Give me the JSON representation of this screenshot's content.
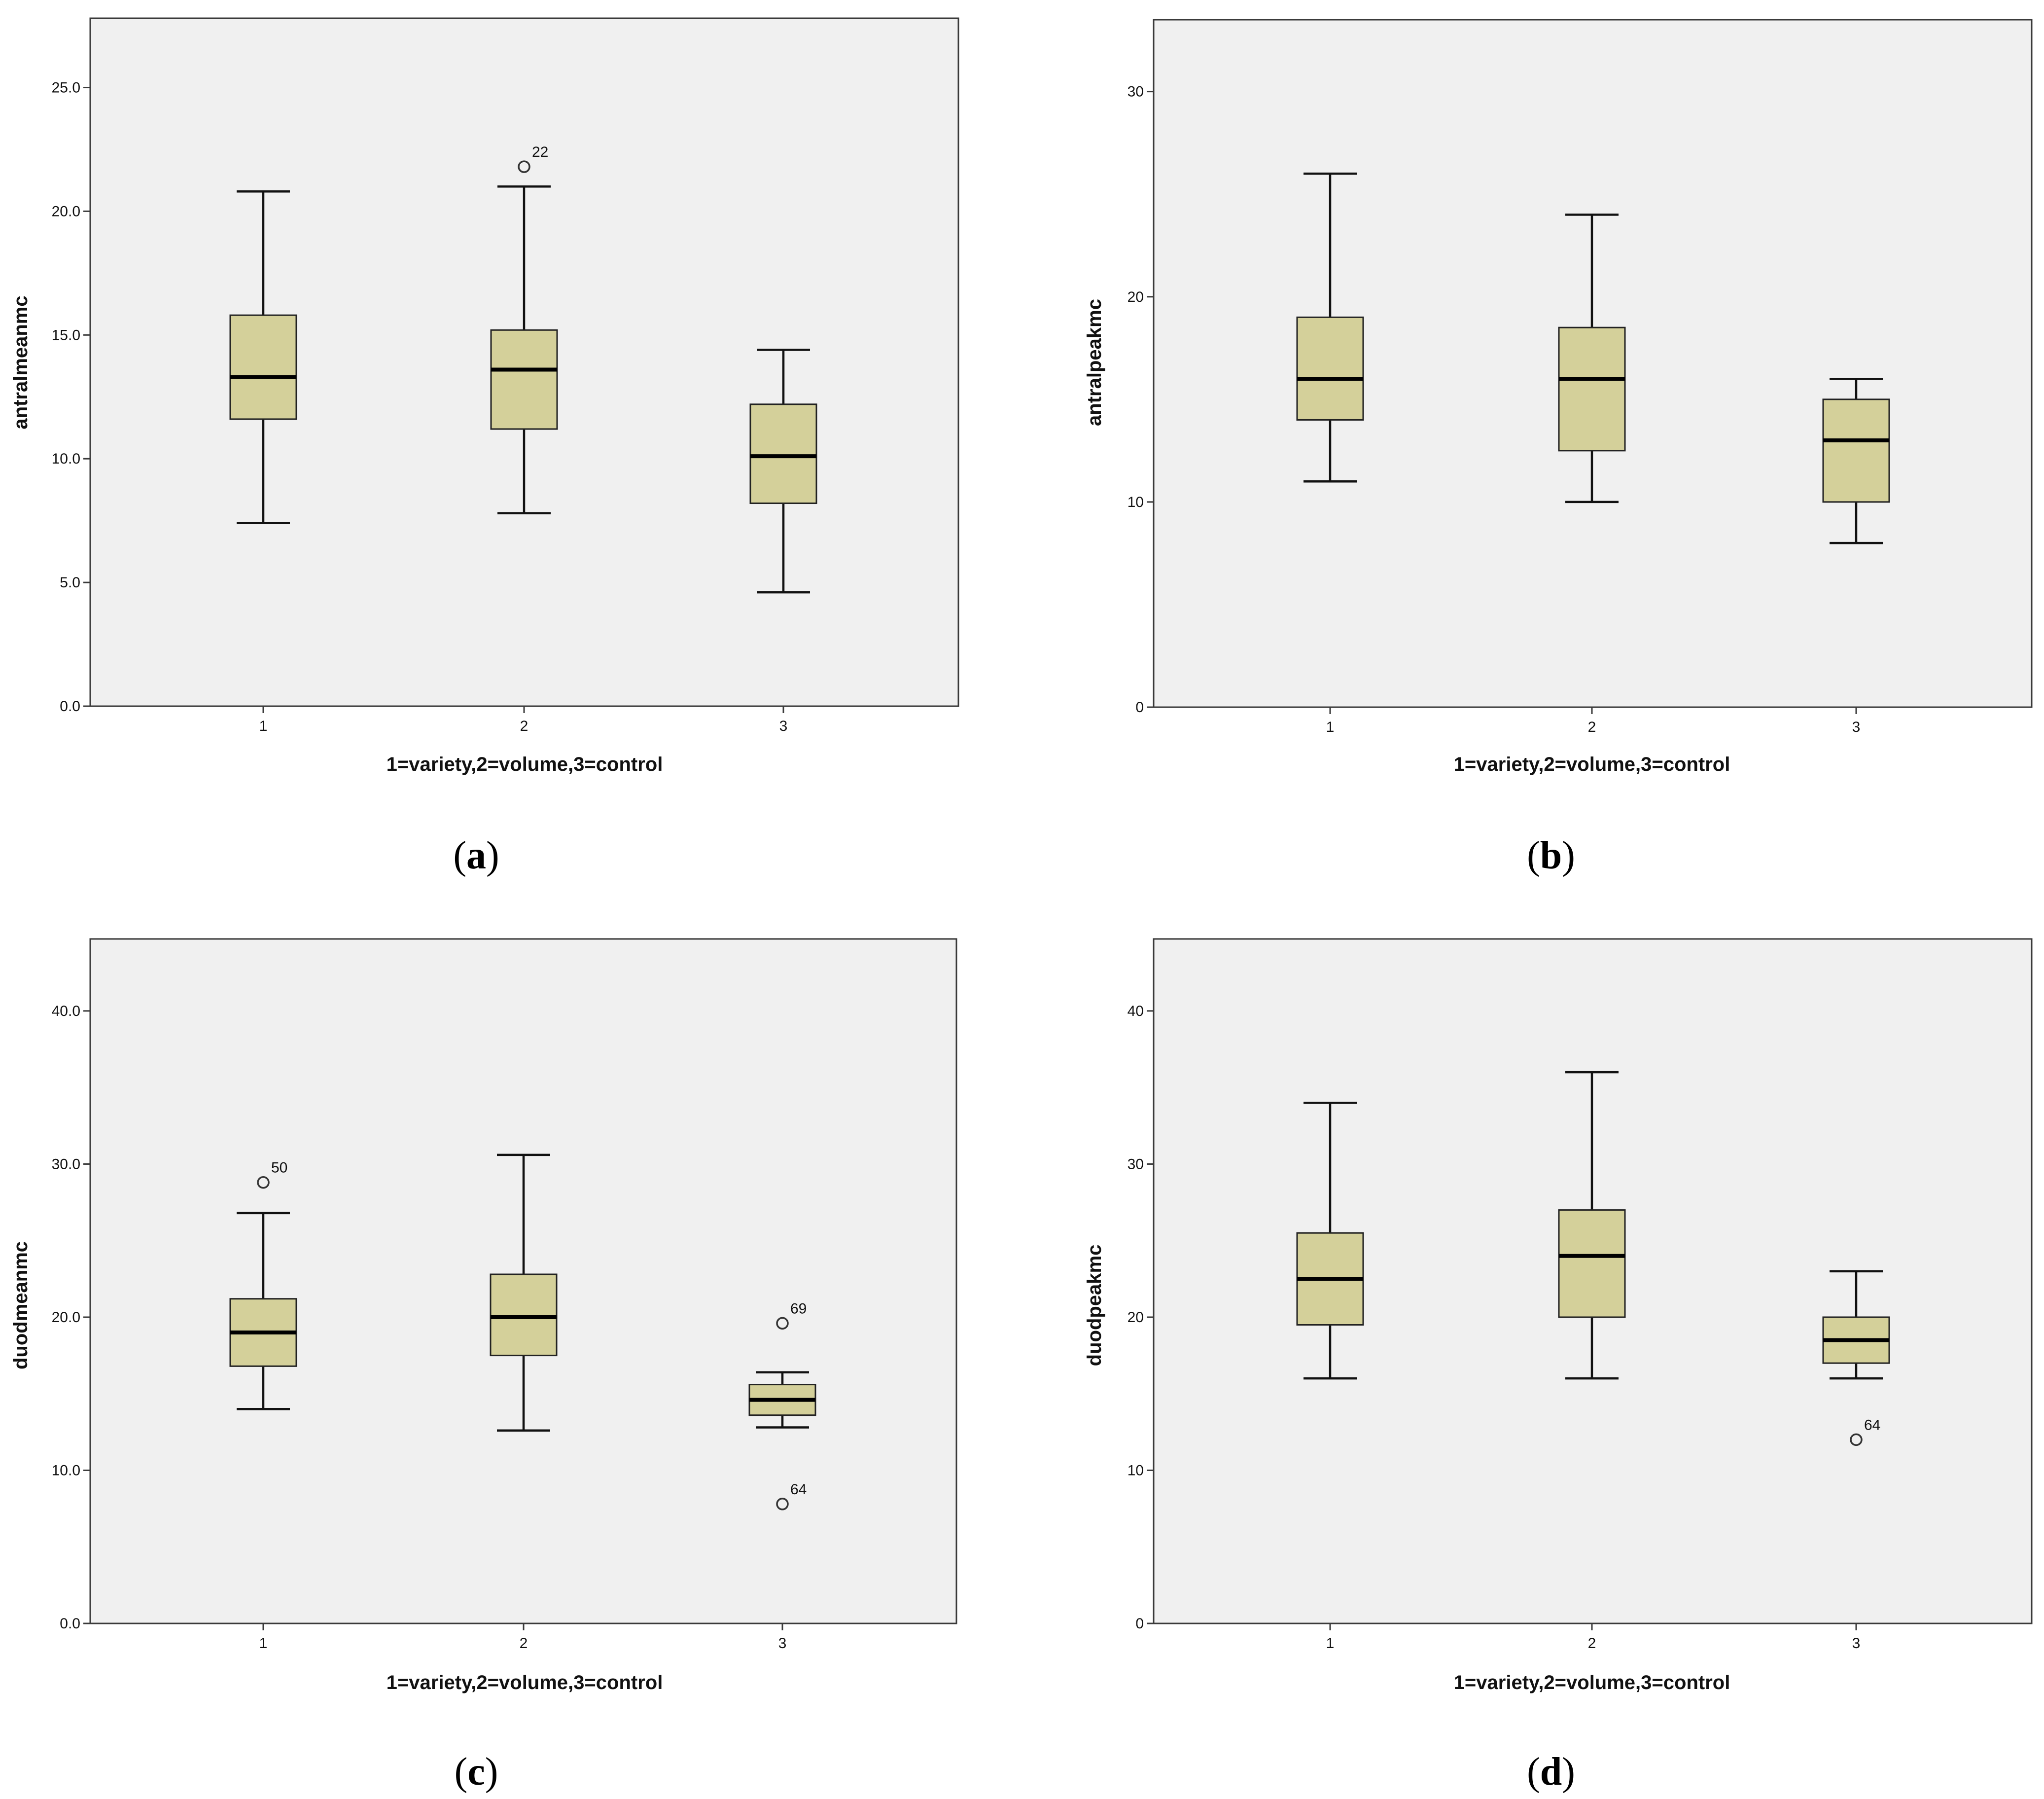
{
  "chart_data": [
    {
      "type": "box",
      "panel": "a",
      "caption_letter": "a",
      "ylabel": "antralmeanmc",
      "xlabel": "1=variety,2=volume,3=control",
      "categories": [
        "1",
        "2",
        "3"
      ],
      "ylim": [
        0,
        27.8
      ],
      "yticks": [
        0,
        5,
        10,
        15,
        20,
        25
      ],
      "ytick_labels": [
        "0.0",
        "5.0",
        "10.0",
        "15.0",
        "20.0",
        "25.0"
      ],
      "boxes": [
        {
          "category": "1",
          "whisker_low": 7.4,
          "q1": 11.6,
          "median": 13.3,
          "q3": 15.8,
          "whisker_high": 20.8,
          "outliers": []
        },
        {
          "category": "2",
          "whisker_low": 7.8,
          "q1": 11.2,
          "median": 13.6,
          "q3": 15.2,
          "whisker_high": 21.0,
          "outliers": [
            {
              "value": 21.8,
              "label": "22"
            }
          ]
        },
        {
          "category": "3",
          "whisker_low": 4.6,
          "q1": 8.2,
          "median": 10.1,
          "q3": 12.2,
          "whisker_high": 14.4,
          "outliers": []
        }
      ]
    },
    {
      "type": "box",
      "panel": "b",
      "caption_letter": "b",
      "ylabel": "antralpeakmc",
      "xlabel": "1=variety,2=volume,3=control",
      "categories": [
        "1",
        "2",
        "3"
      ],
      "ylim": [
        0,
        33.5
      ],
      "yticks": [
        0,
        10,
        20,
        30
      ],
      "ytick_labels": [
        "0",
        "10",
        "20",
        "30"
      ],
      "boxes": [
        {
          "category": "1",
          "whisker_low": 11,
          "q1": 14,
          "median": 16,
          "q3": 19,
          "whisker_high": 26,
          "outliers": []
        },
        {
          "category": "2",
          "whisker_low": 10,
          "q1": 12.5,
          "median": 16,
          "q3": 18.5,
          "whisker_high": 24,
          "outliers": []
        },
        {
          "category": "3",
          "whisker_low": 8,
          "q1": 10,
          "median": 13,
          "q3": 15,
          "whisker_high": 16,
          "outliers": []
        }
      ]
    },
    {
      "type": "box",
      "panel": "c",
      "caption_letter": "c",
      "ylabel": "duodmeanmc",
      "xlabel": "1=variety,2=volume,3=control",
      "categories": [
        "1",
        "2",
        "3"
      ],
      "ylim": [
        0,
        44.7
      ],
      "yticks": [
        0,
        10,
        20,
        30,
        40
      ],
      "ytick_labels": [
        "0.0",
        "10.0",
        "20.0",
        "30.0",
        "40.0"
      ],
      "boxes": [
        {
          "category": "1",
          "whisker_low": 14.0,
          "q1": 16.8,
          "median": 19.0,
          "q3": 21.2,
          "whisker_high": 26.8,
          "outliers": [
            {
              "value": 28.8,
              "label": "50"
            }
          ]
        },
        {
          "category": "2",
          "whisker_low": 12.6,
          "q1": 17.5,
          "median": 20.0,
          "q3": 22.8,
          "whisker_high": 30.6,
          "outliers": []
        },
        {
          "category": "3",
          "whisker_low": 12.8,
          "q1": 13.6,
          "median": 14.6,
          "q3": 15.6,
          "whisker_high": 16.4,
          "outliers": [
            {
              "value": 19.6,
              "label": "69"
            },
            {
              "value": 7.8,
              "label": "64"
            }
          ]
        }
      ]
    },
    {
      "type": "box",
      "panel": "d",
      "caption_letter": "d",
      "ylabel": "duodpeakmc",
      "xlabel": "1=variety,2=volume,3=control",
      "categories": [
        "1",
        "2",
        "3"
      ],
      "ylim": [
        0,
        44.7
      ],
      "yticks": [
        0,
        10,
        20,
        30,
        40
      ],
      "ytick_labels": [
        "0",
        "10",
        "20",
        "30",
        "40"
      ],
      "boxes": [
        {
          "category": "1",
          "whisker_low": 16,
          "q1": 19.5,
          "median": 22.5,
          "q3": 25.5,
          "whisker_high": 34,
          "outliers": []
        },
        {
          "category": "2",
          "whisker_low": 16,
          "q1": 20,
          "median": 24,
          "q3": 27,
          "whisker_high": 36,
          "outliers": []
        },
        {
          "category": "3",
          "whisker_low": 16,
          "q1": 17,
          "median": 18.5,
          "q3": 20,
          "whisker_high": 23,
          "outliers": [
            {
              "value": 12,
              "label": "64"
            }
          ]
        }
      ]
    }
  ]
}
